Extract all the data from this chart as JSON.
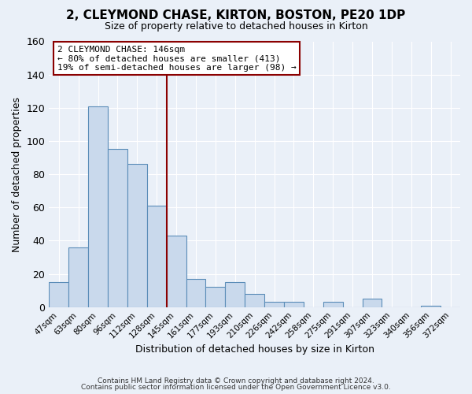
{
  "title": "2, CLEYMOND CHASE, KIRTON, BOSTON, PE20 1DP",
  "subtitle": "Size of property relative to detached houses in Kirton",
  "xlabel": "Distribution of detached houses by size in Kirton",
  "ylabel": "Number of detached properties",
  "bin_labels": [
    "47sqm",
    "63sqm",
    "80sqm",
    "96sqm",
    "112sqm",
    "128sqm",
    "145sqm",
    "161sqm",
    "177sqm",
    "193sqm",
    "210sqm",
    "226sqm",
    "242sqm",
    "258sqm",
    "275sqm",
    "291sqm",
    "307sqm",
    "323sqm",
    "340sqm",
    "356sqm",
    "372sqm"
  ],
  "bar_heights": [
    15,
    36,
    121,
    95,
    86,
    61,
    43,
    17,
    12,
    15,
    8,
    3,
    3,
    0,
    3,
    0,
    5,
    0,
    0,
    1,
    0
  ],
  "bar_color": "#c9d9ec",
  "bar_edge_color": "#5b8db8",
  "vline_x": 6,
  "vline_color": "#8b0000",
  "annotation_line1": "2 CLEYMOND CHASE: 146sqm",
  "annotation_line2": "← 80% of detached houses are smaller (413)",
  "annotation_line3": "19% of semi-detached houses are larger (98) →",
  "annotation_box_color": "#ffffff",
  "annotation_box_edge": "#8b0000",
  "ylim": [
    0,
    160
  ],
  "yticks": [
    0,
    20,
    40,
    60,
    80,
    100,
    120,
    140,
    160
  ],
  "footer1": "Contains HM Land Registry data © Crown copyright and database right 2024.",
  "footer2": "Contains public sector information licensed under the Open Government Licence v3.0.",
  "bg_color": "#eaf0f8",
  "plot_bg_color": "#eaf0f8"
}
